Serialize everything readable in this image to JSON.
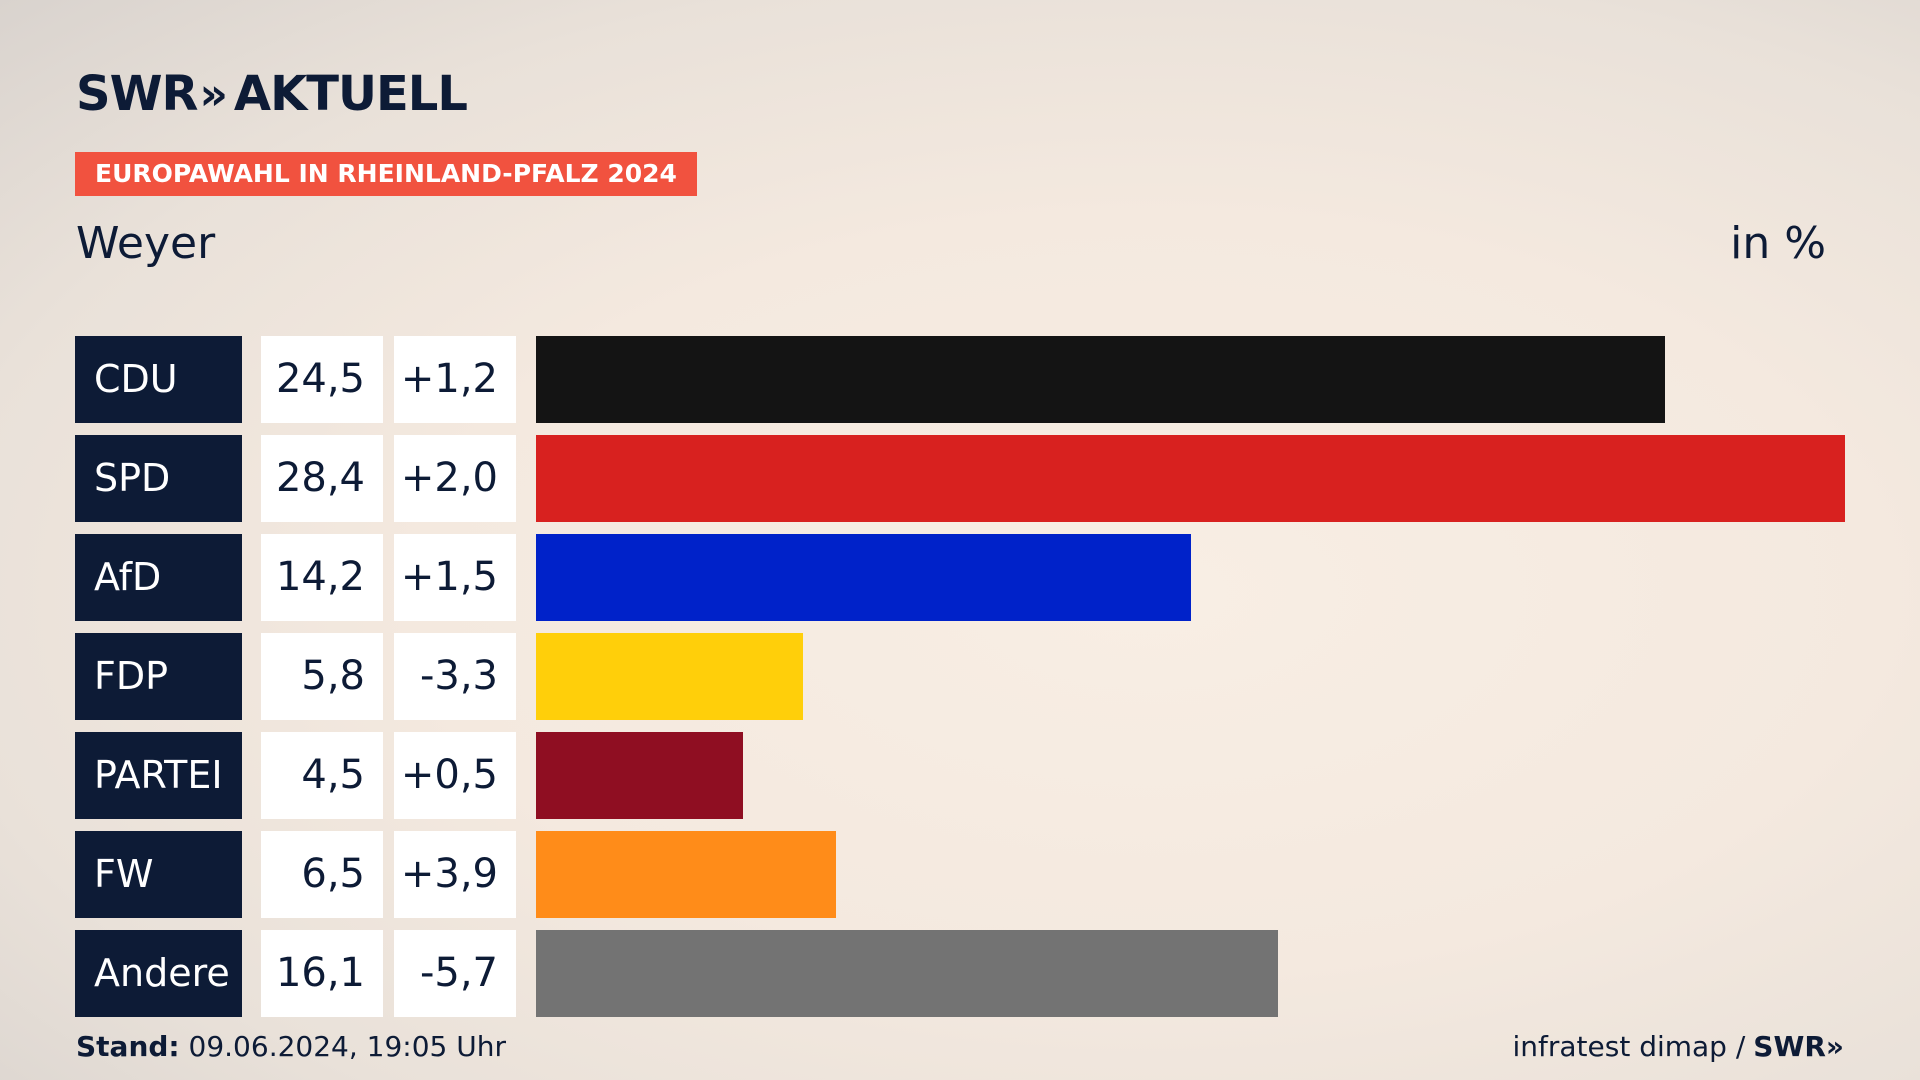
{
  "header": {
    "brand": "SWR",
    "brand_chevrons": "»",
    "brand_suffix": "AKTUELL",
    "tag": "EUROPAWAHL IN RHEINLAND-PFALZ 2024",
    "place": "Weyer",
    "unit": "in %"
  },
  "chart_data": {
    "type": "bar",
    "title": "EUROPAWAHL IN RHEINLAND-PFALZ 2024",
    "subtitle": "Weyer",
    "ylabel": "in %",
    "xlim": [
      0,
      28.4
    ],
    "categories": [
      "CDU",
      "SPD",
      "AfD",
      "FDP",
      "PARTEI",
      "FW",
      "Andere"
    ],
    "values": [
      24.5,
      28.4,
      14.2,
      5.8,
      4.5,
      6.5,
      16.1
    ],
    "value_labels": [
      "24,5",
      "28,4",
      "14,2",
      "5,8",
      "4,5",
      "6,5",
      "16,1"
    ],
    "diff_labels": [
      "+1,2",
      "+2,0",
      "+1,5",
      "-3,3",
      "+0,5",
      "+3,9",
      "-5,7"
    ],
    "colors": [
      "#141414",
      "#d8211f",
      "#0022c9",
      "#ffcf0a",
      "#8f0e22",
      "#ff8c19",
      "#737373"
    ]
  },
  "footer": {
    "stand_label": "Stand:",
    "stand_value": "09.06.2024, 19:05 Uhr",
    "source": "infratest dimap /",
    "source_brand": "SWR»"
  }
}
